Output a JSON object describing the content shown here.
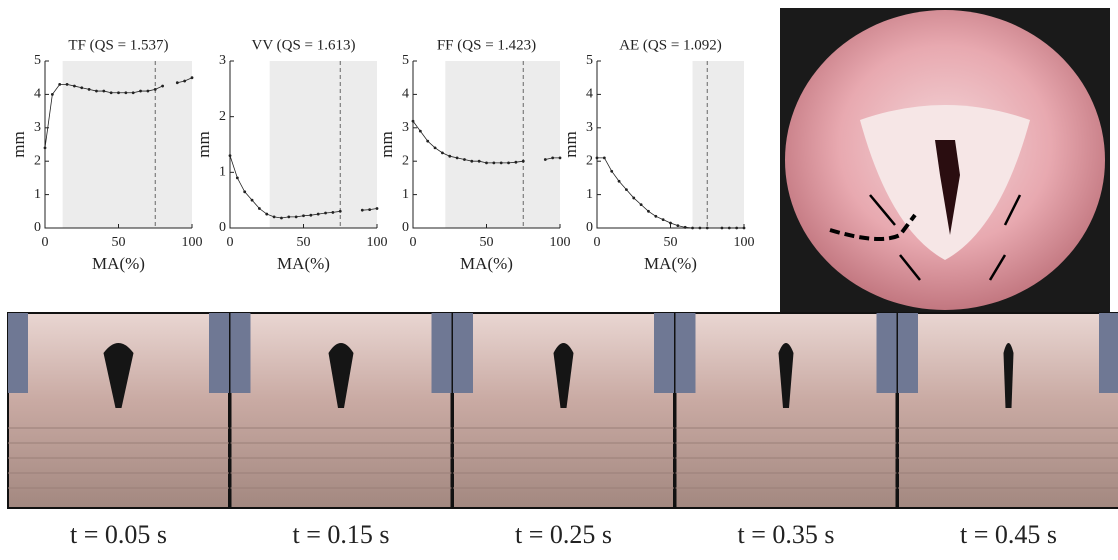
{
  "chart_data": [
    {
      "type": "line",
      "title": "TF (QS = 1.537)",
      "x_label": "MA(%)",
      "y_label": "mm",
      "x": [
        0,
        5,
        10,
        15,
        20,
        25,
        30,
        35,
        40,
        45,
        50,
        55,
        60,
        65,
        70,
        75,
        80,
        85,
        90,
        95,
        100
      ],
      "values": [
        2.4,
        4.0,
        4.3,
        4.3,
        4.25,
        4.2,
        4.15,
        4.1,
        4.1,
        4.05,
        4.05,
        4.05,
        4.05,
        4.1,
        4.1,
        4.15,
        4.25,
        null,
        4.35,
        4.4,
        4.5
      ],
      "xlim": [
        0,
        100
      ],
      "xticks": [
        0,
        50,
        100
      ],
      "ylim": [
        0,
        5
      ],
      "yticks": [
        0,
        1,
        2,
        3,
        4,
        5
      ],
      "shade": [
        12,
        100
      ],
      "vline": 75,
      "color": "#222222"
    },
    {
      "type": "line",
      "title": "VV (QS = 1.613)",
      "x_label": "MA(%)",
      "y_label": "mm",
      "x": [
        0,
        5,
        10,
        15,
        20,
        25,
        30,
        35,
        40,
        45,
        50,
        55,
        60,
        65,
        70,
        75,
        80,
        85,
        90,
        95,
        100
      ],
      "values": [
        1.3,
        0.9,
        0.65,
        0.5,
        0.35,
        0.25,
        0.2,
        0.18,
        0.2,
        0.2,
        0.22,
        0.23,
        0.25,
        0.27,
        0.28,
        0.3,
        null,
        null,
        0.32,
        0.33,
        0.35
      ],
      "xlim": [
        0,
        100
      ],
      "xticks": [
        0,
        50,
        100
      ],
      "ylim": [
        0,
        3
      ],
      "yticks": [
        0,
        1,
        2,
        3
      ],
      "shade": [
        27,
        100
      ],
      "vline": 75,
      "color": "#222222"
    },
    {
      "type": "line",
      "title": "FF (QS = 1.423)",
      "x_label": "MA(%)",
      "y_label": "mm",
      "x": [
        0,
        5,
        10,
        15,
        20,
        25,
        30,
        35,
        40,
        45,
        50,
        55,
        60,
        65,
        70,
        75,
        80,
        85,
        90,
        95,
        100
      ],
      "values": [
        3.2,
        2.9,
        2.6,
        2.4,
        2.25,
        2.15,
        2.1,
        2.05,
        2.0,
        2.0,
        1.95,
        1.95,
        1.95,
        1.95,
        1.97,
        2.0,
        null,
        null,
        2.05,
        2.1,
        2.1
      ],
      "xlim": [
        0,
        100
      ],
      "xticks": [
        0,
        50,
        100
      ],
      "ylim": [
        0,
        5
      ],
      "yticks": [
        0,
        1,
        2,
        3,
        4,
        5
      ],
      "shade": [
        22,
        100
      ],
      "vline": 75,
      "color": "#222222"
    },
    {
      "type": "line",
      "title": "AE (QS = 1.092)",
      "x_label": "MA(%)",
      "y_label": "mm",
      "x": [
        0,
        5,
        10,
        15,
        20,
        25,
        30,
        35,
        40,
        45,
        50,
        55,
        60,
        65,
        70,
        75,
        80,
        85,
        90,
        95,
        100
      ],
      "values": [
        2.1,
        2.1,
        1.7,
        1.4,
        1.15,
        0.9,
        0.7,
        0.5,
        0.35,
        0.25,
        0.15,
        0.07,
        0.02,
        0,
        0,
        0,
        null,
        0,
        0,
        0,
        0
      ],
      "xlim": [
        0,
        100
      ],
      "xticks": [
        0,
        50,
        100
      ],
      "ylim": [
        0,
        5
      ],
      "yticks": [
        0,
        1,
        2,
        3,
        4,
        5
      ],
      "shade": [
        65,
        100
      ],
      "vline": 75,
      "color": "#222222"
    }
  ],
  "captions": [
    "t = 0.05 s",
    "t = 0.15 s",
    "t = 0.25 s",
    "t = 0.35 s",
    "t = 0.45 s"
  ]
}
